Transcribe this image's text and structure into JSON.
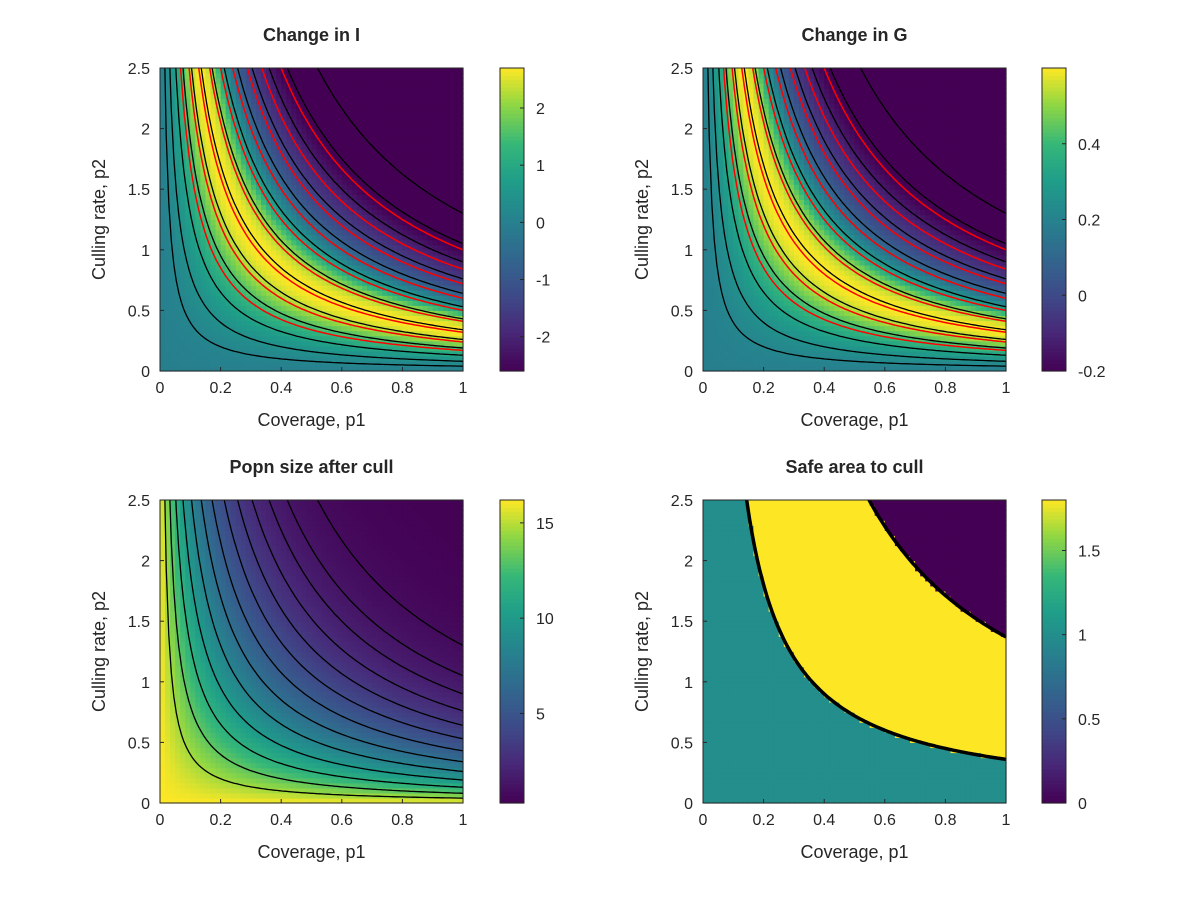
{
  "figure": {
    "background": "#ffffff"
  },
  "chart_data": [
    {
      "type": "heatmap",
      "title": "Change in I",
      "xlabel": "Coverage, p1",
      "ylabel": "Culling rate, p2",
      "xlim": [
        0,
        1
      ],
      "ylim": [
        0,
        2.5
      ],
      "xticks": [
        "0",
        "0.2",
        "0.4",
        "0.6",
        "0.8",
        "1"
      ],
      "yticks": [
        "0",
        "0.5",
        "1",
        "1.5",
        "2",
        "2.5"
      ],
      "colorbar": {
        "range": [
          -2.6,
          2.7
        ],
        "ticks": [
          "-2",
          "-1",
          "0",
          "1",
          "2"
        ],
        "tick_values": [
          -2,
          -1,
          0,
          1,
          2
        ],
        "colormap": "parula"
      },
      "pattern": "pulse",
      "red_contours": true,
      "contour_lines": "black",
      "value_range": [
        -2.6,
        2.7
      ]
    },
    {
      "type": "heatmap",
      "title": "Change in G",
      "xlabel": "Coverage, p1",
      "ylabel": "Culling rate, p2",
      "xlim": [
        0,
        1
      ],
      "ylim": [
        0,
        2.5
      ],
      "xticks": [
        "0",
        "0.2",
        "0.4",
        "0.6",
        "0.8",
        "1"
      ],
      "yticks": [
        "0",
        "0.5",
        "1",
        "1.5",
        "2",
        "2.5"
      ],
      "colorbar": {
        "range": [
          -0.2,
          0.6
        ],
        "ticks": [
          "-0.2",
          "0",
          "0.2",
          "0.4"
        ],
        "tick_values": [
          -0.2,
          0,
          0.2,
          0.4
        ],
        "colormap": "parula"
      },
      "pattern": "pulse",
      "red_contours": true,
      "contour_lines": "black",
      "value_range": [
        -0.2,
        0.6
      ]
    },
    {
      "type": "heatmap",
      "title": "Popn size after cull",
      "xlabel": "Coverage, p1",
      "ylabel": "Culling rate, p2",
      "xlim": [
        0,
        1
      ],
      "ylim": [
        0,
        2.5
      ],
      "xticks": [
        "0",
        "0.2",
        "0.4",
        "0.6",
        "0.8",
        "1"
      ],
      "yticks": [
        "0",
        "0.5",
        "1",
        "1.5",
        "2",
        "2.5"
      ],
      "colorbar": {
        "range": [
          0.3,
          16.2
        ],
        "ticks": [
          "5",
          "10",
          "15"
        ],
        "tick_values": [
          5,
          10,
          15
        ],
        "colormap": "parula"
      },
      "pattern": "decay",
      "red_contours": false,
      "contour_lines": "black",
      "value_range": [
        0.3,
        16.2
      ]
    },
    {
      "type": "heatmap",
      "title": "Safe area to cull",
      "xlabel": "Coverage, p1",
      "ylabel": "Culling rate, p2",
      "xlim": [
        0,
        1
      ],
      "ylim": [
        0,
        2.5
      ],
      "xticks": [
        "0",
        "0.2",
        "0.4",
        "0.6",
        "0.8",
        "1"
      ],
      "yticks": [
        "0",
        "0.5",
        "1",
        "1.5",
        "2",
        "2.5"
      ],
      "colorbar": {
        "range": [
          0,
          1.8
        ],
        "ticks": [
          "0",
          "0.5",
          "1",
          "1.5"
        ],
        "tick_values": [
          0,
          0.5,
          1,
          1.5
        ],
        "colormap": "parula"
      },
      "pattern": "regions",
      "region_values": [
        1,
        1.8,
        0
      ],
      "region_boundaries_p1p2": [
        0.36,
        1.37
      ],
      "red_contours": false,
      "contour_lines": "black",
      "value_range": [
        0,
        1.8
      ]
    }
  ]
}
